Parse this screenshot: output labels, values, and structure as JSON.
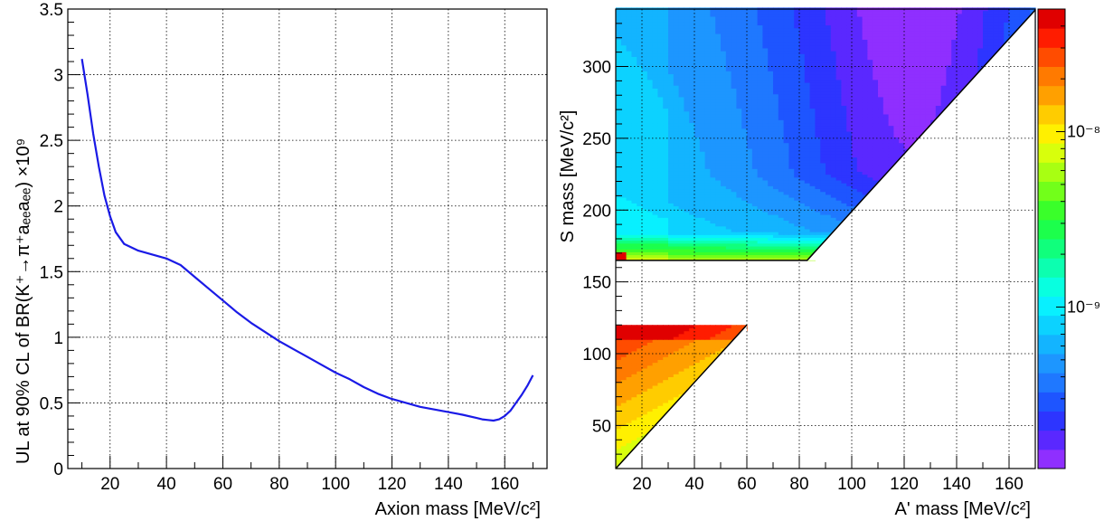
{
  "chart_data": [
    {
      "type": "line",
      "xlabel": "Axion mass [MeV/c²]",
      "ylabel": "UL at 90% CL of BR(K⁺→π⁺aₑₑaₑₑ) ×10⁹",
      "xlim": [
        5,
        175
      ],
      "ylim": [
        0,
        3.5
      ],
      "x_ticks": [
        20,
        40,
        60,
        80,
        100,
        120,
        140,
        160
      ],
      "y_ticks": [
        0,
        0.5,
        1,
        1.5,
        2,
        2.5,
        3,
        3.5
      ],
      "y_tick_labels": [
        "0",
        "0.5",
        "1",
        "1.5",
        "2",
        "2.5",
        "3",
        "3.5"
      ],
      "grid": true,
      "series": [
        {
          "color": "#1a1ae6",
          "x": [
            10,
            12,
            14,
            16,
            18,
            20,
            22,
            25,
            30,
            35,
            40,
            45,
            50,
            55,
            60,
            65,
            70,
            75,
            80,
            85,
            90,
            95,
            100,
            105,
            110,
            115,
            120,
            125,
            130,
            135,
            140,
            145,
            150,
            152,
            154,
            156,
            158,
            160,
            162,
            164,
            166,
            168,
            170
          ],
          "y": [
            3.12,
            2.85,
            2.55,
            2.3,
            2.08,
            1.92,
            1.8,
            1.71,
            1.66,
            1.63,
            1.6,
            1.55,
            1.46,
            1.37,
            1.28,
            1.19,
            1.11,
            1.04,
            0.97,
            0.91,
            0.85,
            0.79,
            0.73,
            0.68,
            0.62,
            0.57,
            0.53,
            0.5,
            0.47,
            0.45,
            0.43,
            0.41,
            0.385,
            0.375,
            0.37,
            0.365,
            0.375,
            0.4,
            0.44,
            0.5,
            0.56,
            0.63,
            0.71
          ]
        }
      ]
    },
    {
      "type": "heatmap",
      "xlabel": "A' mass [MeV/c²]",
      "ylabel": "S mass [MeV/c²]",
      "xlim": [
        10,
        170
      ],
      "ylim": [
        20,
        340
      ],
      "x_ticks": [
        20,
        40,
        60,
        80,
        100,
        120,
        140,
        160
      ],
      "y_ticks": [
        50,
        100,
        150,
        200,
        250,
        300
      ],
      "colorbar": {
        "scale": "log",
        "range": [
          1.2e-10,
          5e-08
        ],
        "tick_labels": [
          "10⁻⁹",
          "10⁻⁸"
        ],
        "tick_values": [
          1e-09,
          1e-08
        ],
        "palette": [
          "#8f2fff",
          "#5a28ff",
          "#2d35ff",
          "#1e55ff",
          "#1f78ff",
          "#1d96ff",
          "#13b4ff",
          "#0cd2ff",
          "#08f0ff",
          "#08ffe0",
          "#0cffb0",
          "#10ff7c",
          "#1cff4c",
          "#3aff2a",
          "#72ff1a",
          "#a8ff12",
          "#d8ff0c",
          "#fff000",
          "#ffcc00",
          "#ffa000",
          "#ff7a00",
          "#ff4c00",
          "#ff1c00",
          "#e00000"
        ]
      },
      "regions": [
        {
          "name": "upper",
          "description": "S mass from 165 to 340, A' mass up to S-82",
          "value_range": [
            1.5e-10,
            4e-08
          ]
        },
        {
          "name": "lower",
          "description": "S mass from 20 to 120, A' mass up to S/2",
          "value_range": [
            6e-09,
            5e-08
          ]
        }
      ],
      "grid": true
    }
  ]
}
